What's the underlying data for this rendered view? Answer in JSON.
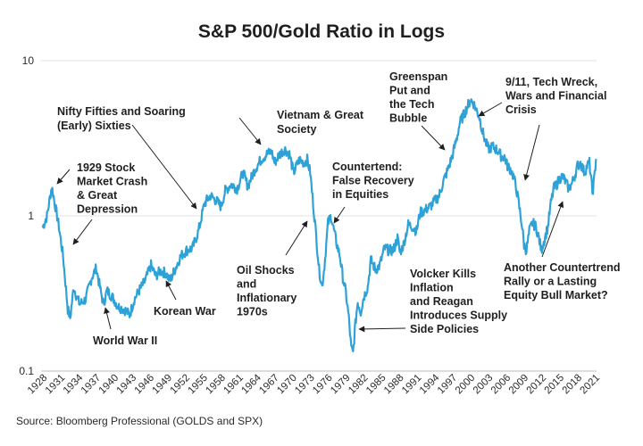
{
  "chart_data": {
    "type": "line",
    "title": "S&P 500/Gold Ratio in Logs",
    "source": "Source: Bloomberg Professional (GOLDS and SPX)",
    "yscale": "log",
    "ylim": [
      0.1,
      10
    ],
    "xlim": [
      1927.5,
      2021
    ],
    "y_ticks": [
      {
        "value": 10,
        "label": "10"
      },
      {
        "value": 1,
        "label": "1"
      },
      {
        "value": 0.1,
        "label": "0.1"
      }
    ],
    "x_tick_labels": [
      "1928",
      "1931",
      "1934",
      "1937",
      "1940",
      "1943",
      "1946",
      "1949",
      "1952",
      "1955",
      "1958",
      "1961",
      "1964",
      "1967",
      "1970",
      "1973",
      "1976",
      "1979",
      "1982",
      "1985",
      "1988",
      "1991",
      "1994",
      "1997",
      "2000",
      "2003",
      "2006",
      "2009",
      "2012",
      "2015",
      "2018",
      "2021"
    ],
    "series": [
      {
        "name": "S&P 500/Gold Ratio",
        "color": "#2ea2d6",
        "points": [
          [
            1927.8,
            0.85
          ],
          [
            1928.5,
            1.0
          ],
          [
            1929.3,
            1.55
          ],
          [
            1929.9,
            1.15
          ],
          [
            1930.5,
            0.85
          ],
          [
            1931.2,
            0.55
          ],
          [
            1932.0,
            0.25
          ],
          [
            1932.4,
            0.22
          ],
          [
            1933.0,
            0.35
          ],
          [
            1933.5,
            0.3
          ],
          [
            1934.0,
            0.27
          ],
          [
            1935.0,
            0.29
          ],
          [
            1936.0,
            0.4
          ],
          [
            1936.8,
            0.46
          ],
          [
            1937.5,
            0.33
          ],
          [
            1938.0,
            0.27
          ],
          [
            1938.6,
            0.33
          ],
          [
            1939.5,
            0.3
          ],
          [
            1940.5,
            0.26
          ],
          [
            1941.5,
            0.25
          ],
          [
            1942.4,
            0.23
          ],
          [
            1943.2,
            0.29
          ],
          [
            1944.0,
            0.33
          ],
          [
            1945.0,
            0.38
          ],
          [
            1946.0,
            0.48
          ],
          [
            1946.8,
            0.41
          ],
          [
            1947.5,
            0.44
          ],
          [
            1948.5,
            0.43
          ],
          [
            1949.2,
            0.38
          ],
          [
            1950.0,
            0.45
          ],
          [
            1951.0,
            0.55
          ],
          [
            1952.0,
            0.6
          ],
          [
            1953.0,
            0.62
          ],
          [
            1954.0,
            0.8
          ],
          [
            1955.0,
            1.2
          ],
          [
            1956.0,
            1.35
          ],
          [
            1957.0,
            1.25
          ],
          [
            1957.8,
            1.15
          ],
          [
            1958.5,
            1.45
          ],
          [
            1959.5,
            1.6
          ],
          [
            1960.5,
            1.5
          ],
          [
            1961.5,
            1.9
          ],
          [
            1962.3,
            1.55
          ],
          [
            1963.5,
            2.0
          ],
          [
            1964.5,
            2.3
          ],
          [
            1965.5,
            2.5
          ],
          [
            1966.3,
            2.6
          ],
          [
            1966.8,
            2.2
          ],
          [
            1967.5,
            2.45
          ],
          [
            1968.5,
            2.7
          ],
          [
            1969.3,
            2.5
          ],
          [
            1970.0,
            1.9
          ],
          [
            1970.5,
            2.1
          ],
          [
            1971.0,
            2.3
          ],
          [
            1971.7,
            2.2
          ],
          [
            1972.3,
            2.3
          ],
          [
            1972.8,
            1.9
          ],
          [
            1973.3,
            1.2
          ],
          [
            1973.8,
            0.75
          ],
          [
            1974.3,
            0.45
          ],
          [
            1974.8,
            0.35
          ],
          [
            1975.2,
            0.48
          ],
          [
            1975.8,
            0.9
          ],
          [
            1976.3,
            1.0
          ],
          [
            1976.8,
            0.8
          ],
          [
            1977.3,
            0.65
          ],
          [
            1977.8,
            0.55
          ],
          [
            1978.3,
            0.4
          ],
          [
            1978.8,
            0.32
          ],
          [
            1979.3,
            0.22
          ],
          [
            1979.7,
            0.14
          ],
          [
            1980.0,
            0.13
          ],
          [
            1980.4,
            0.2
          ],
          [
            1980.8,
            0.28
          ],
          [
            1981.3,
            0.24
          ],
          [
            1981.8,
            0.3
          ],
          [
            1982.5,
            0.35
          ],
          [
            1983.0,
            0.52
          ],
          [
            1983.8,
            0.45
          ],
          [
            1984.5,
            0.48
          ],
          [
            1985.3,
            0.62
          ],
          [
            1986.0,
            0.6
          ],
          [
            1986.8,
            0.6
          ],
          [
            1987.5,
            0.72
          ],
          [
            1987.9,
            0.58
          ],
          [
            1988.5,
            0.65
          ],
          [
            1989.3,
            0.88
          ],
          [
            1990.0,
            0.85
          ],
          [
            1990.7,
            0.8
          ],
          [
            1991.3,
            1.05
          ],
          [
            1992.0,
            1.08
          ],
          [
            1993.0,
            1.15
          ],
          [
            1993.8,
            1.25
          ],
          [
            1994.5,
            1.35
          ],
          [
            1995.3,
            1.7
          ],
          [
            1996.0,
            2.0
          ],
          [
            1996.8,
            2.5
          ],
          [
            1997.5,
            3.2
          ],
          [
            1998.0,
            4.0
          ],
          [
            1998.8,
            4.6
          ],
          [
            1999.3,
            5.1
          ],
          [
            1999.8,
            5.6
          ],
          [
            2000.3,
            5.3
          ],
          [
            2000.8,
            4.8
          ],
          [
            2001.3,
            4.3
          ],
          [
            2001.8,
            3.5
          ],
          [
            2002.3,
            3.0
          ],
          [
            2002.8,
            2.7
          ],
          [
            2003.5,
            2.8
          ],
          [
            2004.0,
            2.7
          ],
          [
            2004.5,
            2.6
          ],
          [
            2005.0,
            2.4
          ],
          [
            2005.5,
            2.4
          ],
          [
            2006.0,
            2.1
          ],
          [
            2006.5,
            2.0
          ],
          [
            2007.0,
            1.8
          ],
          [
            2007.5,
            1.5
          ],
          [
            2007.9,
            1.2
          ],
          [
            2008.4,
            0.9
          ],
          [
            2008.8,
            0.65
          ],
          [
            2009.2,
            0.6
          ],
          [
            2009.7,
            0.8
          ],
          [
            2010.2,
            0.9
          ],
          [
            2010.8,
            0.85
          ],
          [
            2011.3,
            0.72
          ],
          [
            2011.7,
            0.6
          ],
          [
            2012.2,
            0.7
          ],
          [
            2012.8,
            0.85
          ],
          [
            2013.3,
            1.2
          ],
          [
            2013.8,
            1.5
          ],
          [
            2014.3,
            1.6
          ],
          [
            2014.8,
            1.75
          ],
          [
            2015.3,
            1.8
          ],
          [
            2015.8,
            1.65
          ],
          [
            2016.3,
            1.5
          ],
          [
            2016.8,
            1.6
          ],
          [
            2017.3,
            1.8
          ],
          [
            2017.8,
            2.1
          ],
          [
            2018.3,
            2.2
          ],
          [
            2018.7,
            2.0
          ],
          [
            2019.0,
            1.9
          ],
          [
            2019.4,
            2.1
          ],
          [
            2019.8,
            2.2
          ],
          [
            2020.1,
            1.7
          ],
          [
            2020.3,
            1.4
          ],
          [
            2020.6,
            1.7
          ],
          [
            2020.9,
            2.3
          ]
        ]
      }
    ],
    "annotations": [
      {
        "id": "crash-1929",
        "lines": [
          "1929 Stock",
          "Market Crash",
          "& Great",
          "Depression"
        ]
      },
      {
        "id": "nifty-fifties",
        "lines": [
          "Nifty Fifties and Soaring",
          "(Early) Sixties"
        ]
      },
      {
        "id": "vietnam",
        "lines": [
          "Vietnam & Great",
          "Society"
        ]
      },
      {
        "id": "greenspan",
        "lines": [
          "Greenspan",
          "Put and",
          "the Tech",
          "Bubble"
        ]
      },
      {
        "id": "nine-eleven",
        "lines": [
          "9/11, Tech Wreck,",
          "Wars and Financial",
          "Crisis"
        ]
      },
      {
        "id": "countertrend",
        "lines": [
          "Countertend:",
          "False Recovery",
          "in Equities"
        ]
      },
      {
        "id": "oil-shocks",
        "lines": [
          "Oil Shocks",
          "and",
          "Inflationary",
          "1970s"
        ]
      },
      {
        "id": "volcker",
        "lines": [
          "Volcker Kills",
          "Inflation",
          "and Reagan",
          "Introduces Supply",
          "Side Policies"
        ]
      },
      {
        "id": "korean-war",
        "lines": [
          "Korean War"
        ]
      },
      {
        "id": "world-war-ii",
        "lines": [
          "World War II"
        ]
      },
      {
        "id": "another-countertrend",
        "lines": [
          "Another Countertrend",
          "Rally or a Lasting",
          "Equity Bull Market?"
        ]
      }
    ]
  }
}
